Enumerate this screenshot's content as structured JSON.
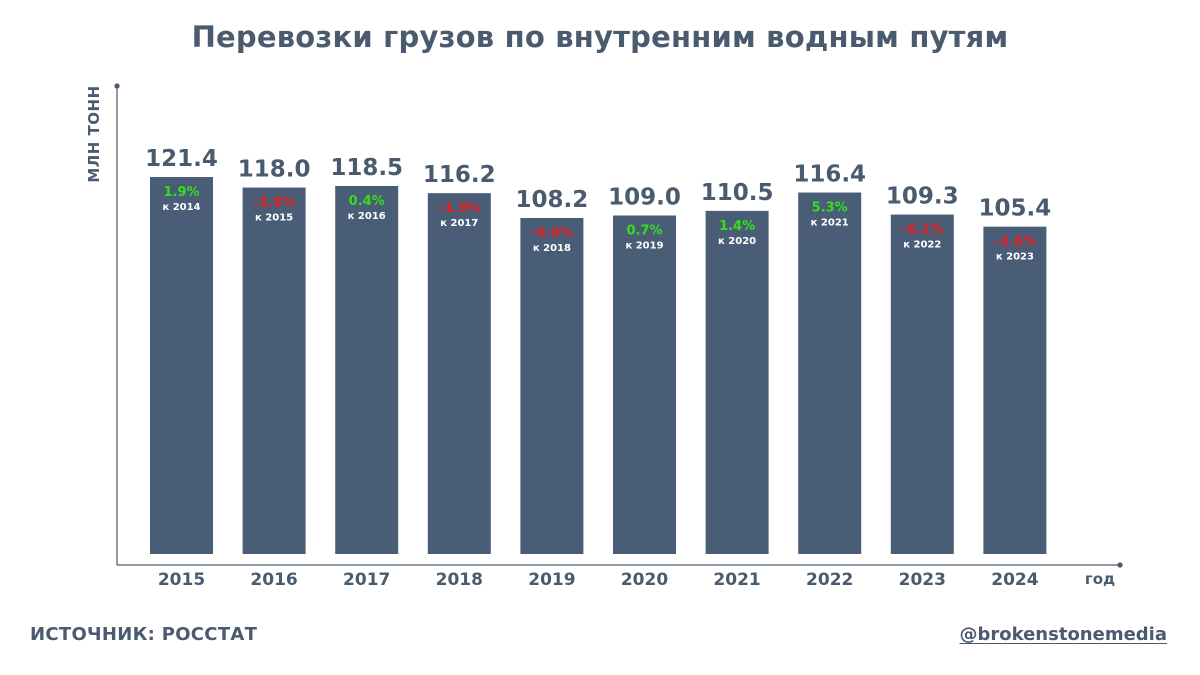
{
  "colors": {
    "bar": "#4a5d76",
    "text": "#4a5a6f",
    "positive": "#33e01b",
    "negative": "#e81f1f",
    "axis": "#4a5a6f"
  },
  "footer": {
    "source": "ИСТОЧНИК: РОССТАТ",
    "handle": "@brokenstonemedia"
  },
  "chart_data": {
    "type": "bar",
    "title": "Перевозки грузов по  внутренним водным путям",
    "ylabel": "МЛН ТОНН",
    "xlabel": "год",
    "ylim": [
      0,
      124
    ],
    "categories": [
      "2015",
      "2016",
      "2017",
      "2018",
      "2019",
      "2020",
      "2021",
      "2022",
      "2023",
      "2024"
    ],
    "values": [
      121.4,
      118.0,
      118.5,
      116.2,
      108.2,
      109.0,
      110.5,
      116.4,
      109.3,
      105.4
    ],
    "value_labels": [
      "121.4",
      "118.0",
      "118.5",
      "116.2",
      "108.2",
      "109.0",
      "110.5",
      "116.4",
      "109.3",
      "105.4"
    ],
    "changes": [
      "1.9%",
      "–2.8%",
      "0.4%",
      "–1.9%",
      "–6.9%",
      "0.7%",
      "1.4%",
      "5.3%",
      "–6.1%",
      "–3.6%"
    ],
    "change_refs": [
      "к 2014",
      "к 2015",
      "к 2016",
      "к 2017",
      "к 2018",
      "к 2019",
      "к 2020",
      "к 2021",
      "к 2022",
      "к 2023"
    ],
    "change_signs": [
      "positive",
      "negative",
      "positive",
      "negative",
      "negative",
      "positive",
      "positive",
      "positive",
      "negative",
      "negative"
    ],
    "grid": false,
    "legend": "none"
  }
}
